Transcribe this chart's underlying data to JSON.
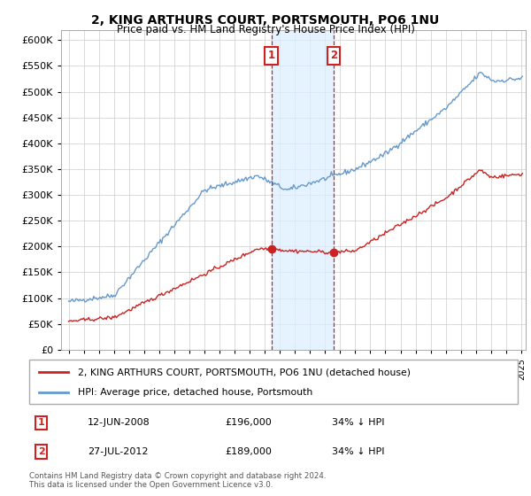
{
  "title": "2, KING ARTHURS COURT, PORTSMOUTH, PO6 1NU",
  "subtitle": "Price paid vs. HM Land Registry's House Price Index (HPI)",
  "legend_line1": "2, KING ARTHURS COURT, PORTSMOUTH, PO6 1NU (detached house)",
  "legend_line2": "HPI: Average price, detached house, Portsmouth",
  "footer1": "Contains HM Land Registry data © Crown copyright and database right 2024.",
  "footer2": "This data is licensed under the Open Government Licence v3.0.",
  "annotation1_date": "12-JUN-2008",
  "annotation1_price": "£196,000",
  "annotation1_hpi": "34% ↓ HPI",
  "annotation2_date": "27-JUL-2012",
  "annotation2_price": "£189,000",
  "annotation2_hpi": "34% ↓ HPI",
  "sale1_year": 2008.45,
  "sale1_price": 196000,
  "sale2_year": 2012.57,
  "sale2_price": 189000,
  "hpi_color": "#6699cc",
  "price_color": "#cc2222",
  "annotation_box_color": "#cc2222",
  "shaded_region_color": "#ddeeff",
  "ylim": [
    0,
    620000
  ],
  "yticks": [
    0,
    50000,
    100000,
    150000,
    200000,
    250000,
    300000,
    350000,
    400000,
    450000,
    500000,
    550000,
    600000
  ],
  "xlim_start": 1994.5,
  "xlim_end": 2025.3
}
